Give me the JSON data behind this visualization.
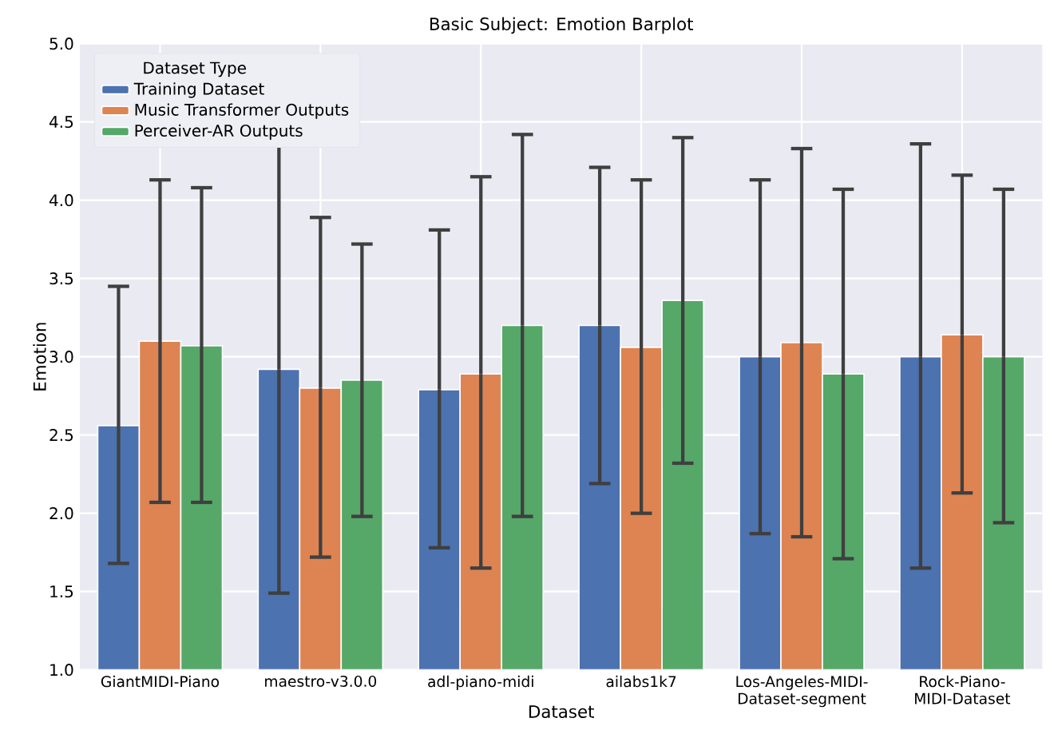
{
  "chart_data": {
    "type": "bar",
    "title": "Basic Subject: Emotion Barplot",
    "xlabel": "Dataset",
    "ylabel": "Emotion",
    "legend_title": "Dataset Type",
    "categories": [
      "GiantMIDI-Piano",
      "maestro-v3.0.0",
      "adl-piano-midi",
      "ailabs1k7",
      "Los-Angeles-MIDI-Dataset-segment",
      "Rock-Piano-MIDI-Dataset"
    ],
    "series": [
      {
        "name": "Training Dataset",
        "color": "#4c72b0",
        "values": [
          2.56,
          2.92,
          2.79,
          3.2,
          3.0,
          3.0
        ],
        "errors": [
          [
            1.68,
            3.45
          ],
          [
            1.49,
            4.37
          ],
          [
            1.78,
            3.81
          ],
          [
            2.19,
            4.21
          ],
          [
            1.87,
            4.13
          ],
          [
            1.65,
            4.36
          ]
        ]
      },
      {
        "name": "Music Transformer Outputs",
        "color": "#dd8452",
        "values": [
          3.1,
          2.8,
          2.89,
          3.06,
          3.09,
          3.14
        ],
        "errors": [
          [
            2.07,
            4.13
          ],
          [
            1.72,
            3.89
          ],
          [
            1.65,
            4.15
          ],
          [
            2.0,
            4.13
          ],
          [
            1.85,
            4.33
          ],
          [
            2.13,
            4.16
          ]
        ]
      },
      {
        "name": "Perceiver-AR Outputs",
        "color": "#55a868",
        "values": [
          3.07,
          2.85,
          3.2,
          3.36,
          2.89,
          3.0
        ],
        "errors": [
          [
            2.07,
            4.08
          ],
          [
            1.98,
            3.72
          ],
          [
            1.98,
            4.42
          ],
          [
            2.32,
            4.4
          ],
          [
            1.71,
            4.07
          ],
          [
            1.94,
            4.07
          ]
        ]
      }
    ],
    "ylim": [
      1.0,
      5.0
    ],
    "yticks": [
      {
        "value": 1.0,
        "label": "1.0"
      },
      {
        "value": 1.5,
        "label": "1.5"
      },
      {
        "value": 2.0,
        "label": "2.0"
      },
      {
        "value": 2.5,
        "label": "2.5"
      },
      {
        "value": 3.0,
        "label": "3.0"
      },
      {
        "value": 3.5,
        "label": "3.5"
      },
      {
        "value": 4.0,
        "label": "4.0"
      },
      {
        "value": 4.5,
        "label": "4.5"
      },
      {
        "value": 5.0,
        "label": "5.0"
      }
    ],
    "grid": true,
    "legend": "top left"
  }
}
